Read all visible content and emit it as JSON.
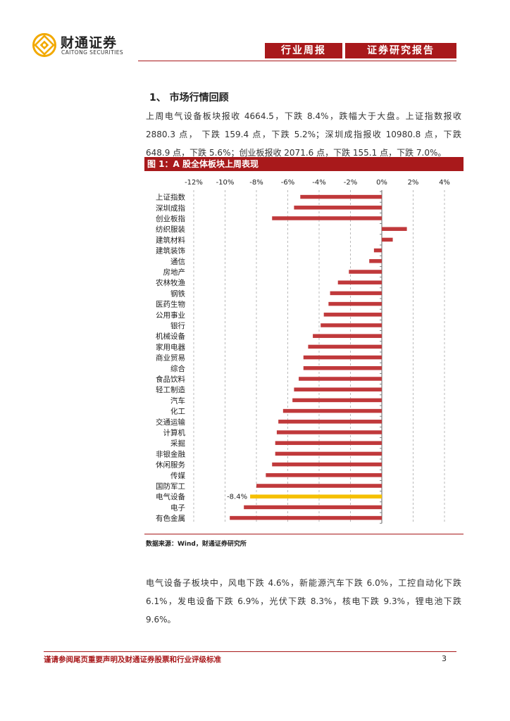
{
  "header": {
    "logo_cn": "财通证券",
    "logo_en": "CAITONG SECURITIES",
    "tab1": "行业周报",
    "tab2": "证券研究报告",
    "brand_color": "#a8191b",
    "logo_color": "#f2a900"
  },
  "section": {
    "title": "1、 市场行情回顾"
  },
  "paragraph1": "上周电气设备板块报收 4664.5，下跌 8.4%，跌幅大于大盘。上证指数报收 2880.3 点， 下跌 159.4 点，下跌 5.2%；深圳成指报收 10980.8 点，下跌 648.9 点，下跌 5.6%；创业板报收 2071.6 点，下跌 155.1 点，下跌 7.0%。",
  "figure": {
    "caption": "图 1：A 股全体板块上周表现",
    "source": "数据来源：Wind，财通证券研究所"
  },
  "chart_data": {
    "type": "bar",
    "orientation": "horizontal",
    "title": "",
    "x_ticks": [
      "-12%",
      "-10%",
      "-8%",
      "-6%",
      "-4%",
      "-2%",
      "0%",
      "2%",
      "4%"
    ],
    "xlim": [
      -12,
      4
    ],
    "unit": "%",
    "bar_color": "#c0393b",
    "highlight_color": "#f5c000",
    "highlight_label": "-8.4%",
    "categories": [
      "上证指数",
      "深圳成指",
      "创业板指",
      "纺织服装",
      "建筑材料",
      "建筑装饰",
      "通信",
      "房地产",
      "农林牧渔",
      "钢铁",
      "医药生物",
      "公用事业",
      "银行",
      "机械设备",
      "家用电器",
      "商业贸易",
      "综合",
      "食品饮料",
      "轻工制造",
      "汽车",
      "化工",
      "交通运输",
      "计算机",
      "采掘",
      "非银金融",
      "休闲服务",
      "传媒",
      "国防军工",
      "电气设备",
      "电子",
      "有色金属"
    ],
    "values": [
      -5.2,
      -5.6,
      -7.0,
      1.6,
      0.7,
      -0.5,
      -0.8,
      -2.1,
      -2.8,
      -3.3,
      -3.4,
      -3.7,
      -3.9,
      -4.4,
      -4.7,
      -5.0,
      -5.0,
      -5.3,
      -5.6,
      -5.7,
      -6.3,
      -6.6,
      -6.7,
      -6.8,
      -6.8,
      -7.0,
      -7.4,
      -8.0,
      -8.4,
      -8.8,
      -9.7
    ],
    "highlight_index": 28
  },
  "paragraph2": "电气设备子板块中，风电下跌 4.6%，新能源汽车下跌 6.0%，工控自动化下跌 6.1%，发电设备下跌 6.9%，光伏下跌 8.3%，核电下跌 9.3%，锂电池下跌 9.6%。",
  "footer": {
    "disclaimer": "谨请参阅尾页重要声明及财通证券股票和行业评级标准",
    "page": "3"
  }
}
